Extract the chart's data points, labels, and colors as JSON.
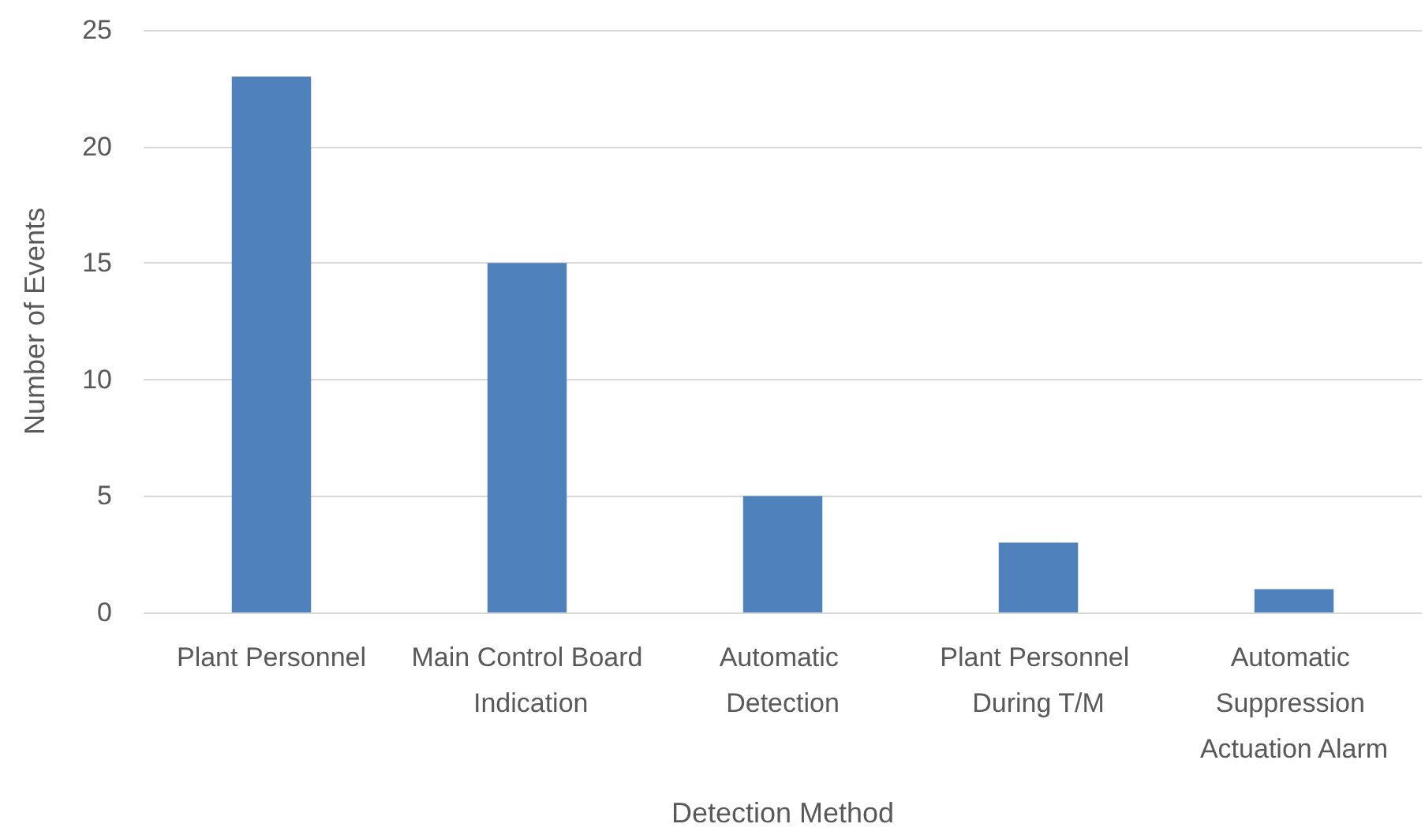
{
  "chart_data": {
    "type": "bar",
    "xlabel": "Detection Method",
    "ylabel": "Number of Events",
    "categories": [
      "Plant Personnel",
      "Main Control Board Indication",
      "Automatic Detection",
      "Plant Personnel During T/M",
      "Automatic Suppression Actuation Alarm"
    ],
    "values": [
      23,
      15,
      5,
      3,
      1
    ],
    "color": "#4f81bd",
    "ylim": [
      0,
      25
    ],
    "yticks": [
      0,
      5,
      10,
      15,
      20,
      25
    ],
    "grid": "y"
  }
}
